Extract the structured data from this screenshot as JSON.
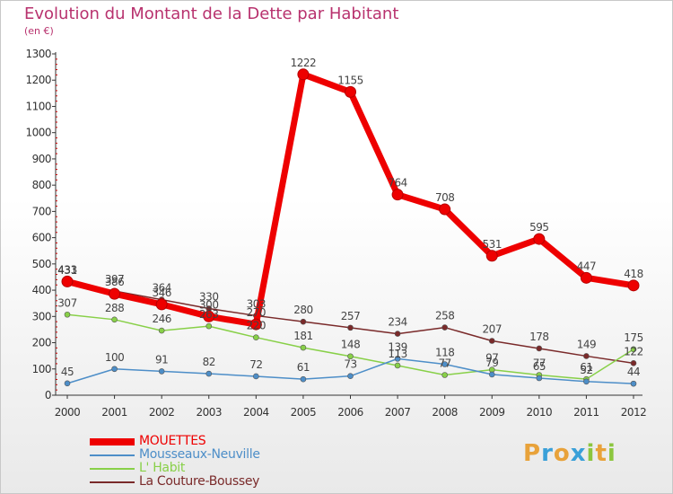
{
  "header": {
    "title": "Evolution du Montant de la Dette par Habitant",
    "subtitle": "(en €)"
  },
  "brand": {
    "letters": [
      "P",
      "r",
      "o",
      "x",
      "i",
      "t",
      "i"
    ],
    "colors": [
      "#e8a23a",
      "#3aa0d8",
      "#e8a23a",
      "#3aa0d8",
      "#8cc63e",
      "#e8a23a",
      "#8cc63e"
    ]
  },
  "colors": {
    "title": "#b8326e",
    "axis": "#333333",
    "grid_tick": "#cc0000"
  },
  "chart_data": {
    "type": "line",
    "x": [
      "2000",
      "2001",
      "2002",
      "2003",
      "2004",
      "2005",
      "2006",
      "2007",
      "2008",
      "2009",
      "2010",
      "2011",
      "2012"
    ],
    "ylim": [
      0,
      1300
    ],
    "yticks": [
      0,
      100,
      200,
      300,
      400,
      500,
      600,
      700,
      800,
      900,
      1000,
      1100,
      1200,
      1300
    ],
    "grid": false,
    "legend_position": "bottom-left",
    "series": [
      {
        "name": "MOUETTES",
        "color": "#ee0000",
        "values": [
          433,
          386,
          346,
          300,
          270,
          1222,
          1155,
          764,
          708,
          531,
          595,
          447,
          418
        ],
        "labels": [
          "433",
          "386",
          "346",
          "300",
          "270",
          "1222",
          "1155",
          "764",
          "708",
          "531",
          "595",
          "447",
          "418"
        ]
      },
      {
        "name": "Mousseaux-Neuville",
        "color": "#4d8ec8",
        "values": [
          45,
          100,
          91,
          82,
          72,
          61,
          73,
          139,
          118,
          79,
          65,
          52,
          44
        ],
        "labels": [
          "45",
          "100",
          "91",
          "82",
          "72",
          "61",
          "73",
          "139",
          "118",
          "79",
          "65",
          "52",
          "44"
        ]
      },
      {
        "name": "L' Habit",
        "color": "#88d048",
        "values": [
          307,
          288,
          246,
          263,
          220,
          181,
          148,
          113,
          77,
          97,
          77,
          61,
          175
        ],
        "labels": [
          "307",
          "288",
          "246",
          "263",
          "220",
          "181",
          "148",
          "113",
          "77",
          "97",
          "77",
          "61",
          "175"
        ]
      },
      {
        "name": "La Couture-Boussey",
        "color": "#7a2a2a",
        "values": [
          431,
          397,
          364,
          330,
          303,
          280,
          257,
          234,
          258,
          207,
          178,
          149,
          122
        ],
        "labels": [
          "431",
          "397",
          "364",
          "330",
          "303",
          "280",
          "257",
          "234",
          "258",
          "207",
          "178",
          "149",
          "122"
        ]
      }
    ]
  }
}
